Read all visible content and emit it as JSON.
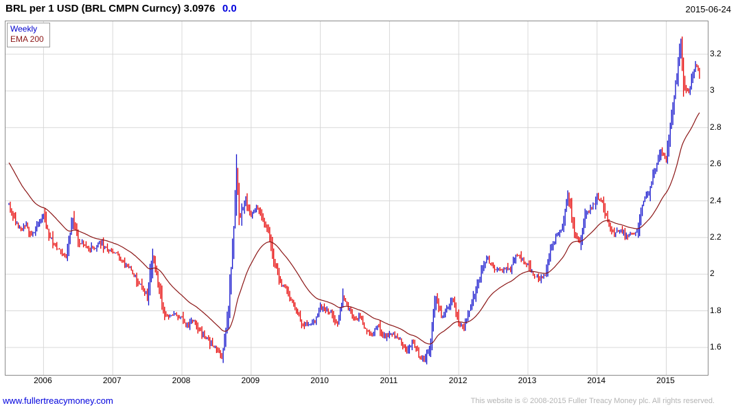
{
  "header": {
    "title": "BRL per 1 USD (BRL CMPN Curncy) 3.0976",
    "change": "0.0",
    "date": "2015-06-24"
  },
  "legend": {
    "series_label": "Weekly",
    "ema_label": "EMA 200"
  },
  "footer": {
    "link": "www.fullertreacymoney.com",
    "copyright": "This website is © 2008-2015 Fuller Treacy Money plc. All rights reserved."
  },
  "colors_ui": {
    "title_change": "#0000dd",
    "link": "#0000dd",
    "copyright": "#b4b4b4",
    "legend_series": "#0000cc",
    "legend_ema": "#8b1515"
  },
  "chart_data": {
    "type": "line",
    "style": "weekly-high-low-bars-with-ema",
    "title": "BRL per 1 USD (BRL CMPN Curncy)",
    "last_value": 3.0976,
    "change": 0.0,
    "as_of_date": "2015-06-24",
    "xlim": [
      2005.45,
      2015.6
    ],
    "ylim": [
      1.45,
      3.38
    ],
    "grid": true,
    "y_ticks": [
      1.6,
      1.8,
      2,
      2.2,
      2.4,
      2.6,
      2.8,
      3,
      3.2
    ],
    "y_tick_labels": [
      "1.6",
      "1.8",
      "2",
      "2.2",
      "2.4",
      "2.6",
      "2.8",
      "3",
      "3.2"
    ],
    "x_ticks": [
      2006,
      2007,
      2008,
      2009,
      2010,
      2011,
      2012,
      2013,
      2014,
      2015
    ],
    "colors": {
      "up": "#1010cc",
      "down": "#e60000",
      "ema": "#8b1515",
      "grid": "#d8d8d8"
    },
    "series": [
      {
        "name": "Weekly",
        "x": [
          2005.5,
          2005.58,
          2005.67,
          2005.75,
          2005.83,
          2005.92,
          2006.0,
          2006.08,
          2006.17,
          2006.25,
          2006.33,
          2006.42,
          2006.5,
          2006.58,
          2006.67,
          2006.75,
          2006.83,
          2006.92,
          2007.0,
          2007.08,
          2007.17,
          2007.25,
          2007.33,
          2007.42,
          2007.5,
          2007.58,
          2007.67,
          2007.75,
          2007.83,
          2007.92,
          2008.0,
          2008.08,
          2008.17,
          2008.25,
          2008.33,
          2008.42,
          2008.5,
          2008.58,
          2008.67,
          2008.75,
          2008.79,
          2008.83,
          2008.92,
          2009.0,
          2009.08,
          2009.17,
          2009.25,
          2009.33,
          2009.42,
          2009.5,
          2009.58,
          2009.67,
          2009.75,
          2009.83,
          2009.92,
          2010.0,
          2010.08,
          2010.17,
          2010.25,
          2010.33,
          2010.42,
          2010.5,
          2010.58,
          2010.67,
          2010.75,
          2010.83,
          2010.92,
          2011.0,
          2011.08,
          2011.17,
          2011.25,
          2011.33,
          2011.42,
          2011.5,
          2011.58,
          2011.67,
          2011.75,
          2011.83,
          2011.92,
          2012.0,
          2012.08,
          2012.17,
          2012.25,
          2012.33,
          2012.42,
          2012.5,
          2012.58,
          2012.67,
          2012.75,
          2012.83,
          2012.92,
          2013.0,
          2013.08,
          2013.17,
          2013.25,
          2013.33,
          2013.42,
          2013.5,
          2013.58,
          2013.67,
          2013.75,
          2013.83,
          2013.92,
          2014.0,
          2014.08,
          2014.17,
          2014.25,
          2014.33,
          2014.42,
          2014.5,
          2014.58,
          2014.67,
          2014.75,
          2014.83,
          2014.92,
          2015.0,
          2015.08,
          2015.17,
          2015.21,
          2015.25,
          2015.33,
          2015.42,
          2015.48
        ],
        "close": [
          2.38,
          2.3,
          2.24,
          2.27,
          2.21,
          2.28,
          2.32,
          2.22,
          2.15,
          2.13,
          2.09,
          2.3,
          2.18,
          2.16,
          2.14,
          2.15,
          2.17,
          2.14,
          2.13,
          2.1,
          2.05,
          2.03,
          1.98,
          1.93,
          1.88,
          2.1,
          1.92,
          1.78,
          1.77,
          1.78,
          1.76,
          1.72,
          1.75,
          1.69,
          1.66,
          1.62,
          1.59,
          1.56,
          1.8,
          2.25,
          2.55,
          2.3,
          2.4,
          2.32,
          2.38,
          2.31,
          2.22,
          2.08,
          1.95,
          1.93,
          1.85,
          1.78,
          1.72,
          1.73,
          1.74,
          1.82,
          1.81,
          1.78,
          1.73,
          1.88,
          1.8,
          1.76,
          1.76,
          1.69,
          1.66,
          1.72,
          1.66,
          1.67,
          1.66,
          1.63,
          1.58,
          1.63,
          1.56,
          1.53,
          1.59,
          1.88,
          1.77,
          1.81,
          1.86,
          1.74,
          1.71,
          1.83,
          1.91,
          2.02,
          2.08,
          2.03,
          2.03,
          2.03,
          2.03,
          2.1,
          2.08,
          2.05,
          1.99,
          1.97,
          2.0,
          2.13,
          2.22,
          2.26,
          2.44,
          2.23,
          2.17,
          2.33,
          2.36,
          2.42,
          2.38,
          2.27,
          2.22,
          2.24,
          2.21,
          2.22,
          2.24,
          2.4,
          2.45,
          2.56,
          2.66,
          2.63,
          2.87,
          3.15,
          3.27,
          3.05,
          2.99,
          3.15,
          3.1
        ]
      },
      {
        "name": "EMA 200",
        "period_days": 200,
        "start_value": 2.62
      }
    ]
  }
}
